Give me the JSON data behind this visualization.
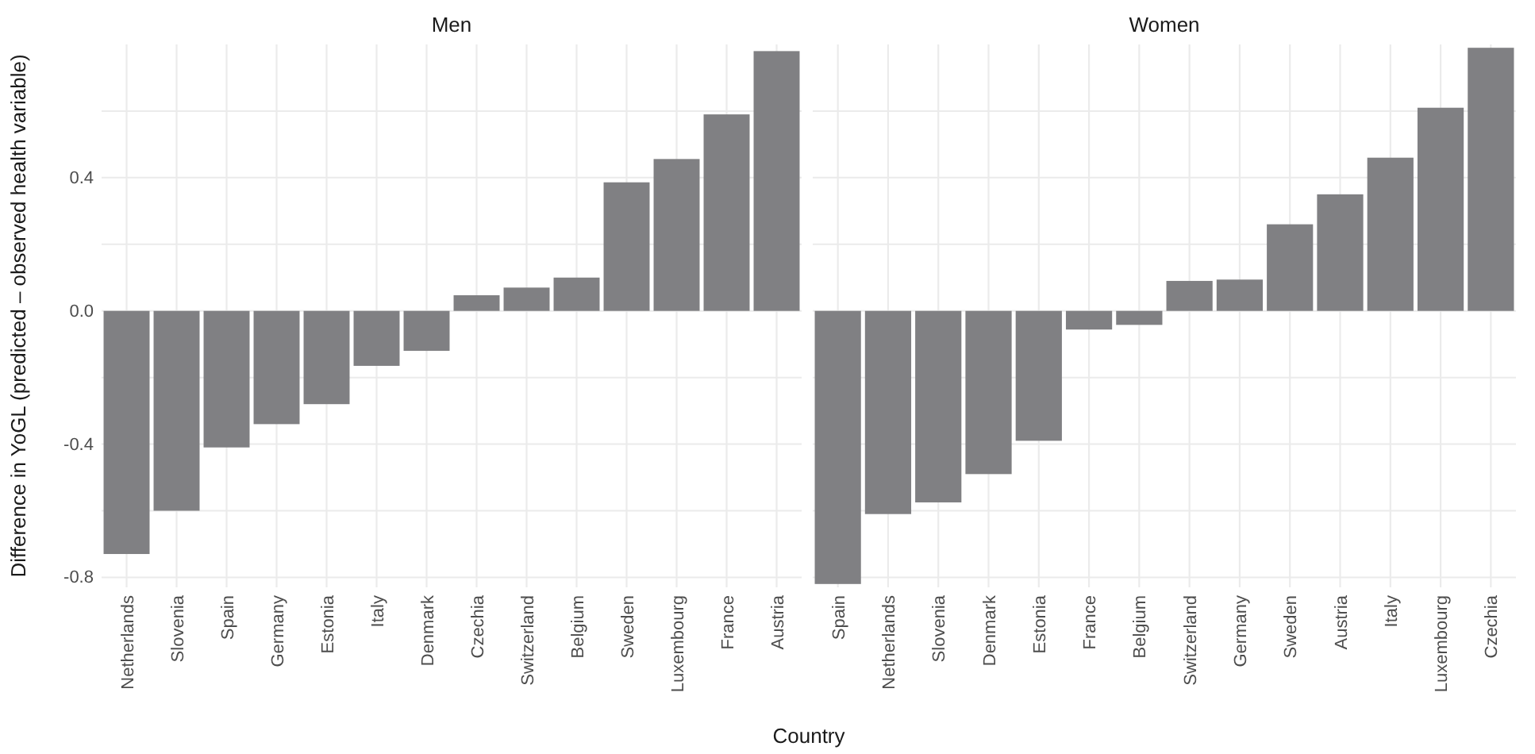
{
  "chart_data": [
    {
      "type": "bar",
      "title": "Men",
      "ylabel": "Difference in YoGL (predicted – observed health variable)",
      "xlabel": "Country",
      "color": "#808083",
      "grid": true,
      "categories": [
        "Netherlands",
        "Slovenia",
        "Spain",
        "Germany",
        "Estonia",
        "Italy",
        "Denmark",
        "Czechia",
        "Switzerland",
        "Belgium",
        "Sweden",
        "Luxembourg",
        "France",
        "Austria"
      ],
      "values": [
        -0.73,
        -0.6,
        -0.41,
        -0.34,
        -0.28,
        -0.165,
        -0.12,
        0.047,
        0.07,
        0.1,
        0.386,
        0.456,
        0.59,
        0.78
      ],
      "ylim": [
        -0.83,
        0.8
      ],
      "yticks": [
        -0.8,
        {
          "value": -0.6,
          "label": null
        },
        -0.4,
        {
          "value": -0.2,
          "label": null
        },
        {
          "value": 0,
          "label": "0.0"
        },
        {
          "value": 0.2,
          "label": null
        },
        0.4,
        {
          "value": 0.6,
          "label": null
        }
      ]
    },
    {
      "type": "bar",
      "title": "Women",
      "color": "#808083",
      "grid": true,
      "tick_labels": "x",
      "categories": [
        "Spain",
        "Netherlands",
        "Slovenia",
        "Denmark",
        "Estonia",
        "France",
        "Belgium",
        "Switzerland",
        "Germany",
        "Sweden",
        "Austria",
        "Italy",
        "Luxembourg",
        "Czechia"
      ],
      "values": [
        -0.82,
        -0.61,
        -0.575,
        -0.49,
        -0.39,
        -0.056,
        -0.042,
        0.09,
        0.094,
        0.26,
        0.35,
        0.46,
        0.61,
        0.79
      ],
      "ylim": [
        -0.83,
        0.8
      ],
      "yticks": [
        -0.8,
        -0.6,
        -0.4,
        -0.2,
        0,
        0.2,
        0.4,
        0.6
      ]
    }
  ]
}
